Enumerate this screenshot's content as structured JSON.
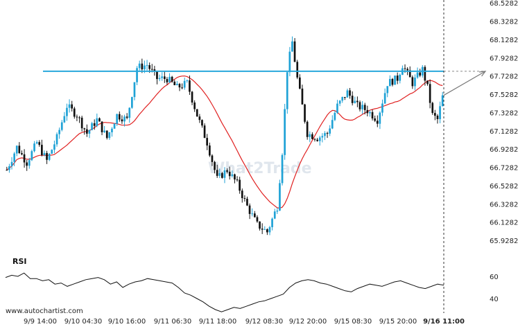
{
  "watermark": "What2Trade",
  "credit": "www.autochartist.com",
  "rsi_label": "RSI",
  "colors": {
    "up": "#1fa2d6",
    "down": "#111111",
    "ma": "#e02020",
    "level": "#29a8dc",
    "rsi": "#111111",
    "arrow": "#777777"
  },
  "chart_data": {
    "type": "candlestick",
    "y_ticks": [
      "68.5282",
      "68.3282",
      "68.1282",
      "67.9282",
      "67.7282",
      "67.5282",
      "67.3282",
      "67.1282",
      "66.9282",
      "66.7282",
      "66.5282",
      "66.3282",
      "66.1282",
      "65.9282"
    ],
    "ylim": [
      65.83,
      68.56
    ],
    "x_ticks": [
      "9/9 14:00",
      "9/10 04:30",
      "9/10 16:00",
      "9/11 06:30",
      "9/11 18:00",
      "9/12 08:30",
      "9/12 20:00",
      "9/15 08:30",
      "9/15 20:00",
      "9/16 11:00"
    ],
    "resistance_level": 67.78,
    "projected_target": 67.78,
    "close_path": [
      [
        0,
        66.7
      ],
      [
        4,
        66.95
      ],
      [
        8,
        66.78
      ],
      [
        12,
        67.0
      ],
      [
        16,
        66.8
      ],
      [
        20,
        67.05
      ],
      [
        24,
        67.4
      ],
      [
        28,
        67.3
      ],
      [
        32,
        67.1
      ],
      [
        36,
        67.25
      ],
      [
        40,
        67.05
      ],
      [
        44,
        67.3
      ],
      [
        48,
        67.25
      ],
      [
        52,
        67.82
      ],
      [
        56,
        67.85
      ],
      [
        60,
        67.7
      ],
      [
        64,
        67.7
      ],
      [
        68,
        67.6
      ],
      [
        72,
        67.65
      ],
      [
        76,
        67.3
      ],
      [
        80,
        67.0
      ],
      [
        84,
        66.6
      ],
      [
        88,
        66.7
      ],
      [
        92,
        66.55
      ],
      [
        96,
        66.3
      ],
      [
        100,
        66.1
      ],
      [
        104,
        66.02
      ],
      [
        108,
        66.3
      ],
      [
        110,
        66.9
      ],
      [
        112,
        67.8
      ],
      [
        114,
        68.1
      ],
      [
        116,
        67.7
      ],
      [
        118,
        67.4
      ],
      [
        120,
        67.1
      ],
      [
        124,
        67.05
      ],
      [
        128,
        67.1
      ],
      [
        132,
        67.4
      ],
      [
        136,
        67.55
      ],
      [
        140,
        67.4
      ],
      [
        144,
        67.35
      ],
      [
        148,
        67.25
      ],
      [
        152,
        67.65
      ],
      [
        156,
        67.7
      ],
      [
        158,
        67.85
      ],
      [
        162,
        67.65
      ],
      [
        166,
        67.8
      ],
      [
        168,
        67.6
      ],
      [
        170,
        67.3
      ],
      [
        172,
        67.25
      ],
      [
        174,
        67.5
      ]
    ],
    "rsi": {
      "ticks": [
        "60",
        "40"
      ],
      "ylim": [
        25,
        75
      ],
      "values": [
        59,
        61,
        60,
        63,
        58,
        58,
        56,
        57,
        53,
        54,
        51,
        53,
        55,
        57,
        58,
        59,
        57,
        53,
        55,
        50,
        53,
        55,
        56,
        58,
        57,
        56,
        55,
        54,
        50,
        45,
        43,
        40,
        37,
        33,
        30,
        28,
        30,
        32,
        31,
        33,
        35,
        37,
        38,
        40,
        42,
        44,
        50,
        54,
        56,
        57,
        56,
        54,
        53,
        51,
        49,
        47,
        46,
        49,
        51,
        53,
        52,
        51,
        53,
        55,
        56,
        54,
        52,
        50,
        49,
        51,
        53,
        52
      ]
    }
  }
}
